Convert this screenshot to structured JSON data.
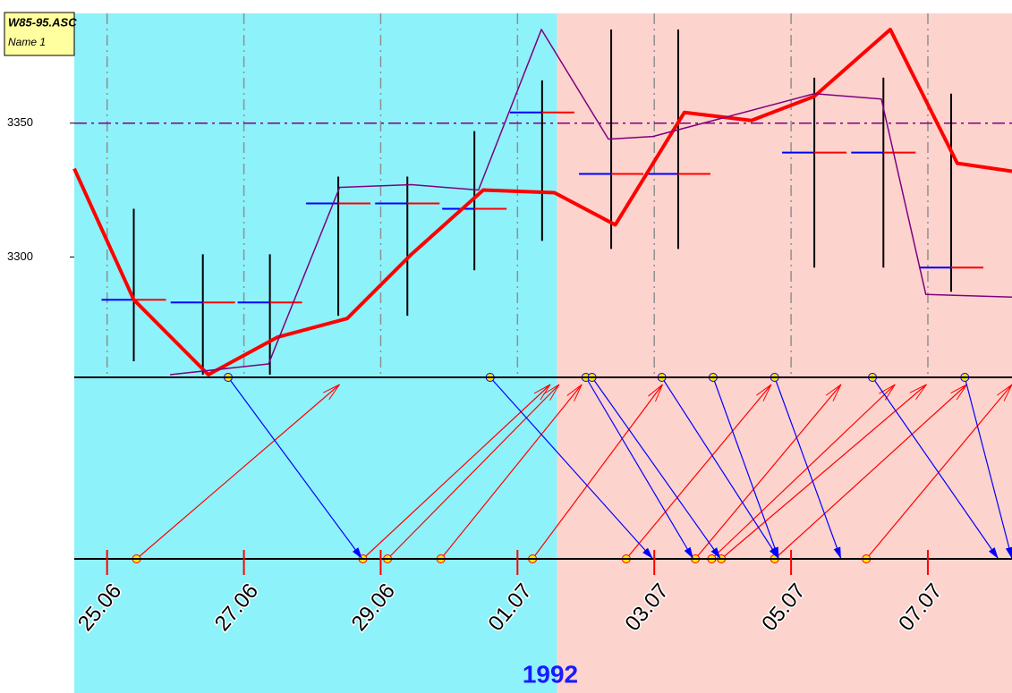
{
  "chart_data": {
    "type": "line",
    "labels": [
      "W85-95.ASC",
      "Name 1"
    ],
    "xlabel": "1992",
    "xlim": [
      -0.48,
      13.23
    ],
    "xticks": [
      {
        "value": 0,
        "label": "25.06"
      },
      {
        "value": 2,
        "label": "27.06"
      },
      {
        "value": 4,
        "label": "29.06"
      },
      {
        "value": 6,
        "label": "01.07"
      },
      {
        "value": 8,
        "label": "03.07"
      },
      {
        "value": 10,
        "label": "05.07"
      },
      {
        "value": 12,
        "label": "07.07"
      }
    ],
    "ylim": [
      3255,
      3391
    ],
    "yticks": [
      3300,
      3350
    ],
    "grid": true,
    "hline": {
      "value": 3350,
      "color": "#800080"
    },
    "regions": [
      {
        "from": -0.48,
        "to": 6.58,
        "color": "#8ef2fa"
      },
      {
        "from": 6.58,
        "to": 13.23,
        "color": "#fdd3cd"
      }
    ],
    "series": [
      {
        "color": "#ff0000",
        "width": 4,
        "x": [
          -0.48,
          0.39,
          1.48,
          2.49,
          3.51,
          4.45,
          5.5,
          6.54,
          7.43,
          8.44,
          9.42,
          10.34,
          11.45,
          12.43,
          13.23
        ],
        "values": [
          3333,
          3284,
          3256,
          3270,
          3277,
          3301,
          3325,
          3324,
          3312,
          3354,
          3351,
          3360,
          3385,
          3335,
          3332
        ]
      },
      {
        "color": "#800080",
        "width": 1.5,
        "x": [
          0.92,
          2.36,
          3.4,
          4.45,
          5.43,
          6.35,
          7.33,
          7.98,
          10.34,
          11.32,
          11.97,
          13.23
        ],
        "values": [
          3256,
          3260,
          3326,
          3327,
          3325,
          3385,
          3344,
          3345,
          3361,
          3359,
          3286,
          3285
        ]
      }
    ],
    "ranges": {
      "x": [
        0.39,
        1.4,
        2.38,
        3.38,
        4.39,
        5.37,
        6.36,
        7.37,
        8.35,
        10.34,
        11.35,
        12.34
      ],
      "high": [
        3318,
        3301,
        3301,
        3330,
        3330,
        3347,
        3366,
        3385,
        3385,
        3367,
        3367,
        3361
      ],
      "low": [
        3261,
        3256,
        3256,
        3278,
        3278,
        3295,
        3306,
        3303,
        3303,
        3296,
        3296,
        3287
      ],
      "mid": [
        3284,
        3283,
        3283,
        3320,
        3320,
        3318,
        3354,
        3331,
        3331,
        3339,
        3339,
        3296
      ]
    },
    "arrows": [
      {
        "from": 0.43,
        "to": 3.4,
        "color": "#ff0000"
      },
      {
        "from": 3.74,
        "to": 6.48,
        "color": "#ff0000"
      },
      {
        "from": 4.1,
        "to": 6.61,
        "color": "#ff0000"
      },
      {
        "from": 4.88,
        "to": 6.94,
        "color": "#ff0000"
      },
      {
        "from": 6.22,
        "to": 8.12,
        "color": "#ff0000"
      },
      {
        "from": 7.59,
        "to": 9.71,
        "color": "#ff0000"
      },
      {
        "from": 8.6,
        "to": 10.73,
        "color": "#ff0000"
      },
      {
        "from": 8.84,
        "to": 11.52,
        "color": "#ff0000"
      },
      {
        "from": 8.98,
        "to": 11.98,
        "color": "#ff0000"
      },
      {
        "from": 9.76,
        "to": 12.57,
        "color": "#ff0000"
      },
      {
        "from": 11.1,
        "to": 13.23,
        "color": "#ff0000"
      },
      {
        "from": 1.77,
        "to": 3.73,
        "color": "#0000ff"
      },
      {
        "from": 5.6,
        "to": 7.98,
        "color": "#0000ff"
      },
      {
        "from": 7.0,
        "to": 8.57,
        "color": "#0000ff"
      },
      {
        "from": 7.09,
        "to": 8.97,
        "color": "#0000ff"
      },
      {
        "from": 8.11,
        "to": 9.82,
        "color": "#0000ff"
      },
      {
        "from": 8.86,
        "to": 9.82,
        "color": "#0000ff"
      },
      {
        "from": 9.76,
        "to": 10.73,
        "color": "#0000ff"
      },
      {
        "from": 11.19,
        "to": 13.03,
        "color": "#0000ff"
      },
      {
        "from": 12.54,
        "to": 13.23,
        "color": "#0000ff"
      }
    ]
  }
}
